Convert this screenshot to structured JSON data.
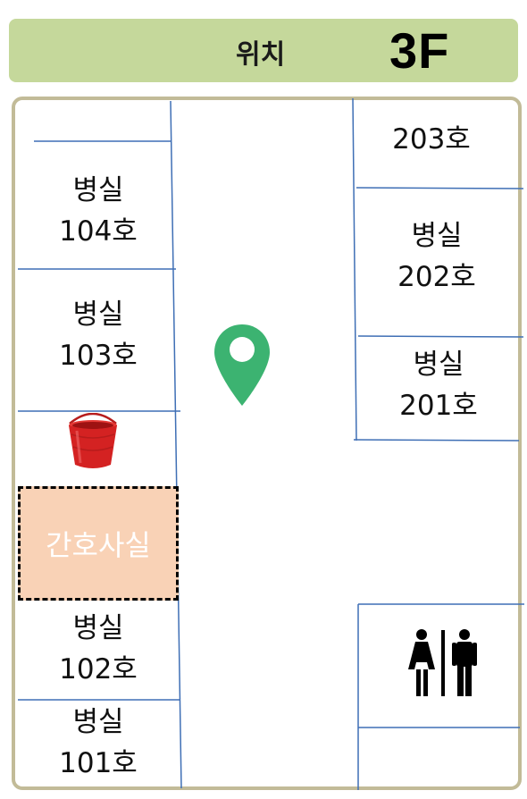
{
  "header": {
    "label": "위치",
    "floor": "3F"
  },
  "rooms_left": [
    {
      "line1": "병실",
      "line2": "104호"
    },
    {
      "line1": "병실",
      "line2": "103호"
    },
    {
      "line1": "병실",
      "line2": "102호"
    },
    {
      "line1": "병실",
      "line2": "101호"
    }
  ],
  "rooms_right": [
    {
      "line1": "203호"
    },
    {
      "line1": "병실",
      "line2": "202호"
    },
    {
      "line1": "병실",
      "line2": "201호"
    }
  ],
  "nurse_station": {
    "label": "간호사실"
  },
  "icons": {
    "location": "location-pin-icon",
    "bucket": "bucket-icon",
    "restroom": "restroom-icon"
  },
  "colors": {
    "header_bg": "#c5d89b",
    "frame_border": "#c2bb98",
    "wall_lines": "#3f6fb5",
    "nurse_bg": "#f9d2b6",
    "pin": "#3cb371",
    "bucket": "#d42222"
  }
}
